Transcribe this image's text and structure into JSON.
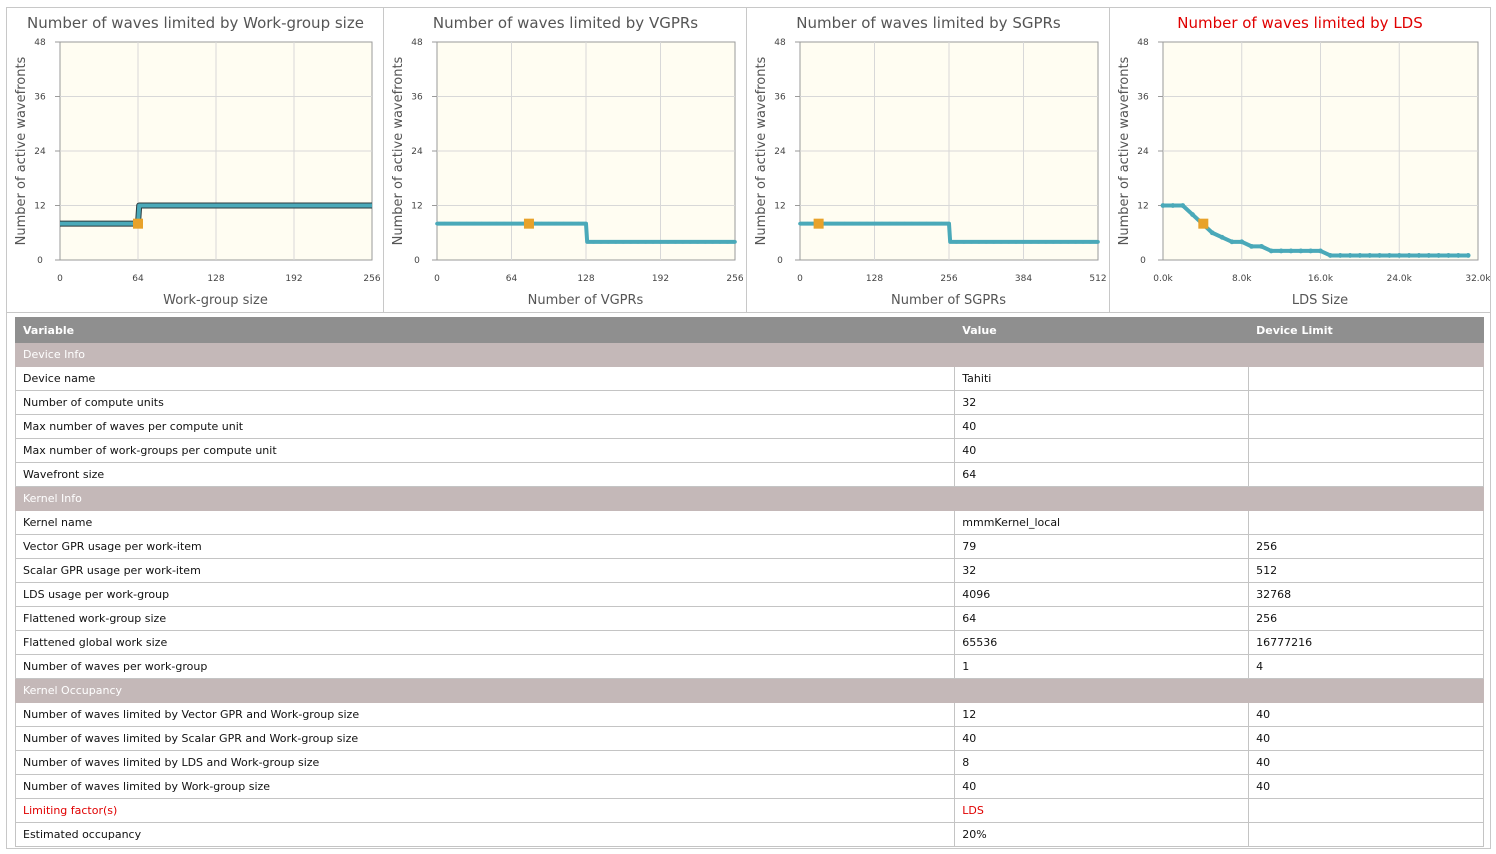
{
  "chart_data": [
    {
      "type": "line",
      "title": "Number of waves limited by Work-group size",
      "title_color": "#555555",
      "xlabel": "Work-group size",
      "ylabel": "Number of active wavefronts",
      "xlim": [
        0,
        256
      ],
      "ylim": [
        0,
        48
      ],
      "xticks": [
        0,
        64,
        128,
        192,
        256
      ],
      "xtick_labels": [
        "0",
        "64",
        "128",
        "192",
        "256"
      ],
      "yticks": [
        0,
        12,
        24,
        36,
        48
      ],
      "grid": true,
      "line_color": "#4aa9b9",
      "series": [
        {
          "x": [
            0,
            64,
            65,
            256
          ],
          "y": [
            8,
            8,
            12,
            12
          ]
        }
      ],
      "marker": {
        "x": 64,
        "y": 8
      }
    },
    {
      "type": "line",
      "title": "Number of waves limited by VGPRs",
      "title_color": "#555555",
      "xlabel": "Number of VGPRs",
      "ylabel": "Number of active wavefronts",
      "xlim": [
        0,
        256
      ],
      "ylim": [
        0,
        48
      ],
      "xticks": [
        0,
        64,
        128,
        192,
        256
      ],
      "xtick_labels": [
        "0",
        "64",
        "128",
        "192",
        "256"
      ],
      "yticks": [
        0,
        12,
        24,
        36,
        48
      ],
      "grid": true,
      "line_color": "#4aa9b9",
      "series": [
        {
          "x": [
            0,
            128,
            129,
            256
          ],
          "y": [
            8,
            8,
            4,
            4
          ]
        }
      ],
      "marker": {
        "x": 79,
        "y": 8
      }
    },
    {
      "type": "line",
      "title": "Number of waves limited by SGPRs",
      "title_color": "#555555",
      "xlabel": "Number of SGPRs",
      "ylabel": "Number of active wavefronts",
      "xlim": [
        0,
        512
      ],
      "ylim": [
        0,
        48
      ],
      "xticks": [
        0,
        128,
        256,
        384,
        512
      ],
      "xtick_labels": [
        "0",
        "128",
        "256",
        "384",
        "512"
      ],
      "yticks": [
        0,
        12,
        24,
        36,
        48
      ],
      "grid": true,
      "line_color": "#4aa9b9",
      "series": [
        {
          "x": [
            0,
            256,
            258,
            512
          ],
          "y": [
            8,
            8,
            4,
            4
          ]
        }
      ],
      "marker": {
        "x": 32,
        "y": 8
      }
    },
    {
      "type": "line",
      "title": "Number of waves limited by LDS",
      "title_color": "#e00000",
      "xlabel": "LDS Size",
      "ylabel": "Number of active wavefronts",
      "xlim": [
        0,
        32000
      ],
      "ylim": [
        0,
        48
      ],
      "xticks": [
        0,
        8000,
        16000,
        24000,
        32000
      ],
      "xtick_labels": [
        "0.0k",
        "8.0k",
        "16.0k",
        "24.0k",
        "32.0k"
      ],
      "yticks": [
        0,
        12,
        24,
        36,
        48
      ],
      "grid": true,
      "line_color": "#4aa9b9",
      "series": [
        {
          "x": [
            0,
            1000,
            2000,
            3000,
            4000,
            5000,
            6000,
            7000,
            8000,
            9000,
            10000,
            11000,
            12000,
            13000,
            14000,
            15000,
            16000,
            17000,
            18000,
            19000,
            20000,
            21000,
            22000,
            23000,
            24000,
            25000,
            26000,
            27000,
            28000,
            29000,
            30000,
            31000
          ],
          "y": [
            12,
            12,
            12,
            10,
            8,
            6,
            5,
            4,
            4,
            3,
            3,
            2,
            2,
            2,
            2,
            2,
            2,
            1,
            1,
            1,
            1,
            1,
            1,
            1,
            1,
            1,
            1,
            1,
            1,
            1,
            1,
            1
          ]
        }
      ],
      "marker": {
        "x": 4096,
        "y": 8
      }
    }
  ],
  "table": {
    "headers": [
      "Variable",
      "Value",
      "Device Limit"
    ],
    "sections": [
      {
        "title": "Device Info",
        "rows": [
          [
            "Device name",
            "Tahiti",
            ""
          ],
          [
            "Number of compute units",
            "32",
            ""
          ],
          [
            "Max number of waves per compute unit",
            "40",
            ""
          ],
          [
            "Max number of work-groups per compute unit",
            "40",
            ""
          ],
          [
            "Wavefront size",
            "64",
            ""
          ]
        ]
      },
      {
        "title": "Kernel Info",
        "rows": [
          [
            "Kernel name",
            "mmmKernel_local",
            ""
          ],
          [
            "Vector GPR usage per work-item",
            "79",
            "256"
          ],
          [
            "Scalar GPR usage per work-item",
            "32",
            "512"
          ],
          [
            "LDS usage per work-group",
            "4096",
            "32768"
          ],
          [
            "Flattened work-group size",
            "64",
            "256"
          ],
          [
            "Flattened global work size",
            "65536",
            "16777216"
          ],
          [
            "Number of waves per work-group",
            "1",
            "4"
          ]
        ]
      },
      {
        "title": "Kernel Occupancy",
        "rows": [
          [
            "Number of waves limited by Vector GPR and Work-group size",
            "12",
            "40"
          ],
          [
            "Number of waves limited by Scalar GPR and Work-group size",
            "40",
            "40"
          ],
          [
            "Number of waves limited by LDS and Work-group size",
            "8",
            "40"
          ],
          [
            "Number of waves limited by Work-group size",
            "40",
            "40"
          ],
          [
            "Limiting factor(s)",
            "LDS",
            ""
          ],
          [
            "Estimated occupancy",
            "20%",
            ""
          ]
        ]
      }
    ],
    "highlight_row_label": "Limiting factor(s)",
    "highlight_color": "#e00000"
  }
}
